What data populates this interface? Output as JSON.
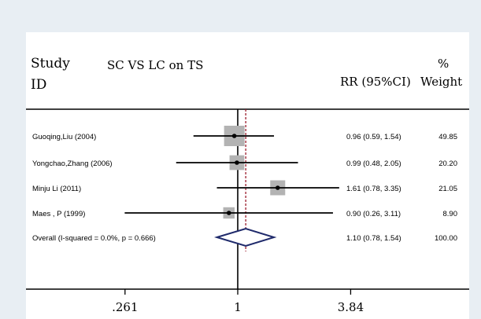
{
  "header": {
    "study_line1": "Study",
    "study_line2": "ID",
    "title": "SC VS LC on TS",
    "rr_label": "RR (95%CI)",
    "weight_line1": "%",
    "weight_line2": "Weight"
  },
  "chart_data": {
    "type": "forest",
    "scale": "log",
    "null_value": 1,
    "overall_value": 1.1,
    "x_ticks": [
      {
        "value": 0.261,
        "label": ".261"
      },
      {
        "value": 1,
        "label": "1"
      },
      {
        "value": 3.84,
        "label": "3.84"
      }
    ],
    "studies": [
      {
        "label": "Guoqing,Liu (2004)",
        "rr": 0.96,
        "lo": 0.59,
        "hi": 1.54,
        "weight": 49.85,
        "rr_text": "0.96 (0.59, 1.54)",
        "weight_text": "49.85"
      },
      {
        "label": "Yongchao,Zhang (2006)",
        "rr": 0.99,
        "lo": 0.48,
        "hi": 2.05,
        "weight": 20.2,
        "rr_text": "0.99 (0.48, 2.05)",
        "weight_text": "20.20"
      },
      {
        "label": "Minju Li (2011)",
        "rr": 1.61,
        "lo": 0.78,
        "hi": 3.35,
        "weight": 21.05,
        "rr_text": "1.61 (0.78, 3.35)",
        "weight_text": "21.05"
      },
      {
        "label": "Maes , P (1999)",
        "rr": 0.9,
        "lo": 0.26,
        "hi": 3.11,
        "weight": 8.9,
        "rr_text": "0.90 (0.26, 3.11)",
        "weight_text": "8.90"
      }
    ],
    "overall": {
      "label": "Overall  (I-squared = 0.0%, p = 0.666)",
      "rr": 1.1,
      "lo": 0.78,
      "hi": 1.54,
      "rr_text": "1.10 (0.78, 1.54)",
      "weight_text": "100.00"
    }
  },
  "colors": {
    "background": "#e8eef3",
    "panel": "#ffffff",
    "marker_box": "#b3b3b3",
    "diamond": "#1f2a6b",
    "overall_line": "#9b1c2c",
    "line": "#000000"
  }
}
